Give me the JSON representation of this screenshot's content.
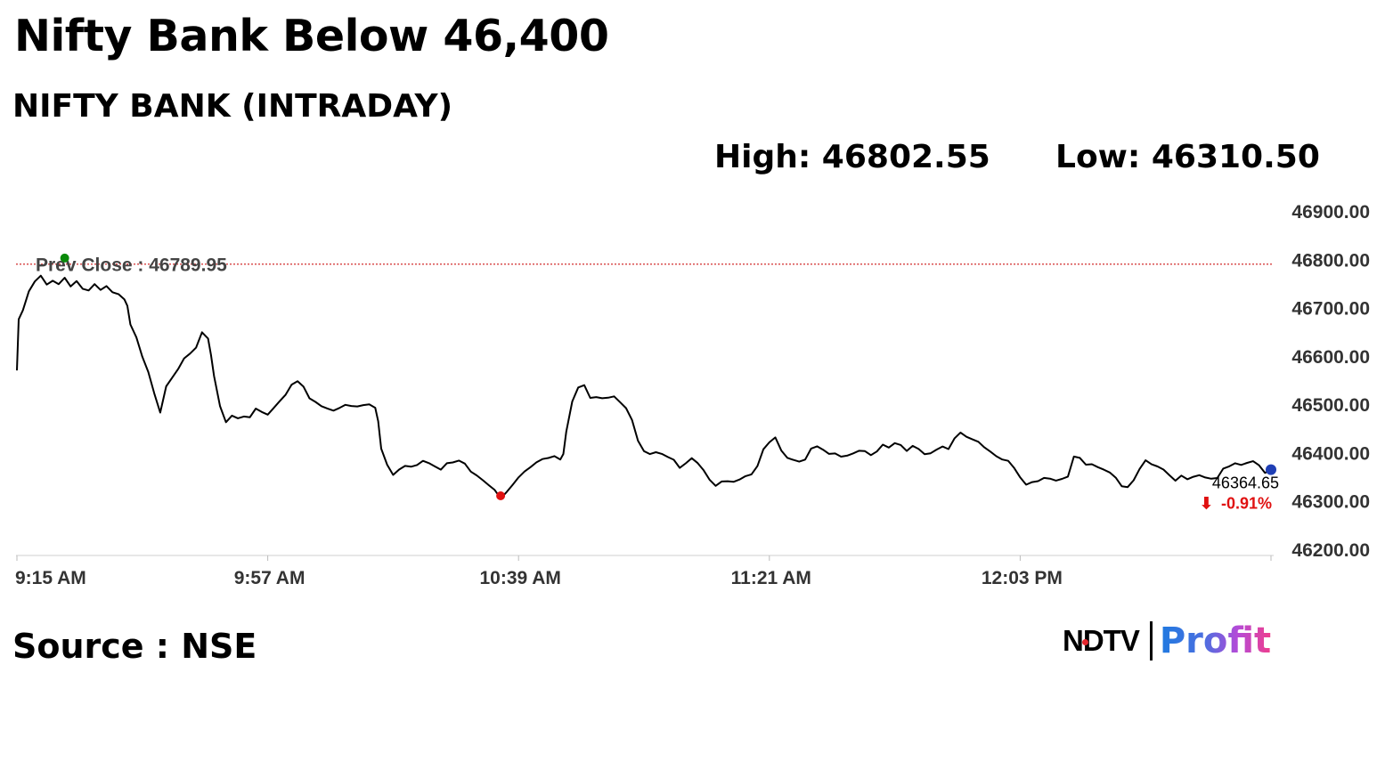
{
  "headline": "Nifty Bank Below 46,400",
  "subheading": "NIFTY BANK (INTRADAY)",
  "stats": {
    "high": "High: 46802.55",
    "low": "Low: 46310.50"
  },
  "source": "Source : NSE",
  "brand": {
    "left": "NDTV",
    "right": "Profit"
  },
  "colors": {
    "line": "#000000",
    "prev_close_line": "#d22f2f",
    "high_marker": "#0a8a0a",
    "low_marker": "#e01010",
    "last_marker": "#1f3fb5",
    "change_negative": "#e01010"
  },
  "chart_data": {
    "type": "line",
    "title": "NIFTY BANK (INTRADAY)",
    "xlabel": "",
    "ylabel": "",
    "x_ticks": [
      "9:15 AM",
      "9:57 AM",
      "10:39 AM",
      "11:21 AM",
      "12:03 PM"
    ],
    "x_range_minutes": [
      555,
      765
    ],
    "y_ticks": [
      "46200.00",
      "46300.00",
      "46400.00",
      "46500.00",
      "46600.00",
      "46700.00",
      "46800.00",
      "46900.00"
    ],
    "ylim": [
      46200,
      46900
    ],
    "grid": false,
    "prev_close": {
      "label": "Prev Close : 46789.95",
      "value": 46789.95
    },
    "last": {
      "time_minutes": 765,
      "value": 46364.65,
      "label": "46364.65",
      "change": "-0.91%",
      "arrow": "⬇"
    },
    "high_point": {
      "time_minutes": 563,
      "value": 46802.55
    },
    "low_point": {
      "time_minutes": 636,
      "value": 46310.5
    },
    "series": [
      {
        "points": [
          [
            555,
            46570
          ],
          [
            555.3,
            46670
          ],
          [
            556,
            46690
          ],
          [
            557,
            46730
          ],
          [
            558,
            46750
          ],
          [
            559,
            46760
          ],
          [
            560,
            46745
          ],
          [
            561,
            46760
          ],
          [
            562,
            46755
          ],
          [
            563,
            46770
          ],
          [
            564,
            46750
          ],
          [
            565,
            46760
          ],
          [
            566,
            46745
          ],
          [
            567,
            46735
          ],
          [
            568,
            46745
          ],
          [
            569,
            46730
          ],
          [
            570,
            46740
          ],
          [
            571,
            46725
          ],
          [
            572,
            46720
          ],
          [
            573,
            46710
          ],
          [
            573.5,
            46700
          ],
          [
            574,
            46665
          ],
          [
            575,
            46640
          ],
          [
            576,
            46600
          ],
          [
            577,
            46570
          ],
          [
            578,
            46530
          ],
          [
            579,
            46490
          ],
          [
            580,
            46545
          ],
          [
            581,
            46555
          ],
          [
            582,
            46570
          ],
          [
            583,
            46590
          ],
          [
            584,
            46600
          ],
          [
            585,
            46610
          ],
          [
            586,
            46640
          ],
          [
            587,
            46630
          ],
          [
            587.5,
            46600
          ],
          [
            588,
            46560
          ],
          [
            589,
            46500
          ],
          [
            590,
            46470
          ],
          [
            591,
            46485
          ],
          [
            592,
            46480
          ],
          [
            593,
            46485
          ],
          [
            594,
            46480
          ],
          [
            595,
            46490
          ],
          [
            596,
            46480
          ],
          [
            597,
            46475
          ],
          [
            598,
            46490
          ],
          [
            599,
            46500
          ],
          [
            600,
            46515
          ],
          [
            601,
            46535
          ],
          [
            602,
            46545
          ],
          [
            603,
            46540
          ],
          [
            604,
            46520
          ],
          [
            605,
            46510
          ],
          [
            606,
            46500
          ],
          [
            607,
            46495
          ],
          [
            608,
            46490
          ],
          [
            609,
            46500
          ],
          [
            610,
            46500
          ],
          [
            611,
            46495
          ],
          [
            612,
            46490
          ],
          [
            613,
            46495
          ],
          [
            614,
            46495
          ],
          [
            615,
            46490
          ],
          [
            615.5,
            46460
          ],
          [
            616,
            46410
          ],
          [
            617,
            46380
          ],
          [
            618,
            46360
          ],
          [
            619,
            46370
          ],
          [
            620,
            46380
          ],
          [
            621,
            46375
          ],
          [
            622,
            46380
          ],
          [
            623,
            46385
          ],
          [
            624,
            46375
          ],
          [
            625,
            46365
          ],
          [
            626,
            46360
          ],
          [
            627,
            46370
          ],
          [
            628,
            46375
          ],
          [
            629,
            46380
          ],
          [
            630,
            46370
          ],
          [
            631,
            46360
          ],
          [
            632,
            46355
          ],
          [
            633,
            46350
          ],
          [
            634,
            46340
          ],
          [
            635,
            46330
          ],
          [
            636,
            46310
          ],
          [
            637,
            46325
          ],
          [
            638,
            46335
          ],
          [
            639,
            46345
          ],
          [
            640,
            46355
          ],
          [
            641,
            46365
          ],
          [
            642,
            46375
          ],
          [
            643,
            46380
          ],
          [
            644,
            46385
          ],
          [
            645,
            46390
          ],
          [
            646,
            46390
          ],
          [
            646.5,
            46400
          ],
          [
            647,
            46450
          ],
          [
            648,
            46510
          ],
          [
            649,
            46540
          ],
          [
            650,
            46545
          ],
          [
            651,
            46520
          ],
          [
            652,
            46515
          ],
          [
            653,
            46510
          ],
          [
            654,
            46510
          ],
          [
            655,
            46510
          ],
          [
            656,
            46495
          ],
          [
            657,
            46485
          ],
          [
            658,
            46460
          ],
          [
            659,
            46420
          ],
          [
            660,
            46405
          ],
          [
            661,
            46400
          ],
          [
            662,
            46405
          ],
          [
            663,
            46400
          ],
          [
            664,
            46395
          ],
          [
            665,
            46390
          ],
          [
            666,
            46375
          ],
          [
            667,
            46380
          ],
          [
            668,
            46385
          ],
          [
            669,
            46375
          ],
          [
            670,
            46360
          ],
          [
            671,
            46340
          ],
          [
            672,
            46325
          ],
          [
            673,
            46335
          ],
          [
            674,
            46340
          ],
          [
            675,
            46345
          ],
          [
            676,
            46350
          ],
          [
            677,
            46355
          ],
          [
            678,
            46360
          ],
          [
            679,
            46375
          ],
          [
            680,
            46410
          ],
          [
            681,
            46425
          ],
          [
            682,
            46430
          ],
          [
            683,
            46400
          ],
          [
            684,
            46385
          ],
          [
            685,
            46380
          ],
          [
            686,
            46375
          ],
          [
            687,
            46380
          ],
          [
            688,
            46400
          ],
          [
            689,
            46410
          ],
          [
            690,
            46405
          ],
          [
            691,
            46400
          ],
          [
            692,
            46400
          ],
          [
            693,
            46395
          ],
          [
            694,
            46400
          ],
          [
            695,
            46405
          ],
          [
            696,
            46410
          ],
          [
            697,
            46405
          ],
          [
            698,
            46395
          ],
          [
            699,
            46400
          ],
          [
            700,
            46410
          ],
          [
            701,
            46405
          ],
          [
            702,
            46415
          ],
          [
            703,
            46410
          ],
          [
            704,
            46405
          ],
          [
            705,
            46415
          ],
          [
            706,
            46410
          ],
          [
            707,
            46400
          ],
          [
            708,
            46405
          ],
          [
            709,
            46415
          ],
          [
            710,
            46420
          ],
          [
            711,
            46410
          ],
          [
            712,
            46430
          ],
          [
            713,
            46440
          ],
          [
            714,
            46430
          ],
          [
            715,
            46420
          ],
          [
            716,
            46415
          ],
          [
            717,
            46405
          ],
          [
            718,
            46395
          ],
          [
            719,
            46390
          ],
          [
            720,
            46385
          ],
          [
            721,
            46385
          ],
          [
            722,
            46375
          ],
          [
            723,
            46355
          ],
          [
            724,
            46340
          ],
          [
            725,
            46345
          ],
          [
            726,
            46340
          ],
          [
            727,
            46345
          ],
          [
            728,
            46340
          ],
          [
            729,
            46335
          ],
          [
            730,
            46340
          ],
          [
            731,
            46345
          ],
          [
            732,
            46385
          ],
          [
            733,
            46380
          ],
          [
            734,
            46370
          ],
          [
            735,
            46375
          ],
          [
            736,
            46370
          ],
          [
            737,
            46365
          ],
          [
            738,
            46360
          ],
          [
            739,
            46350
          ],
          [
            740,
            46335
          ],
          [
            741,
            46330
          ],
          [
            742,
            46340
          ],
          [
            743,
            46360
          ],
          [
            744,
            46375
          ],
          [
            745,
            46370
          ],
          [
            746,
            46365
          ],
          [
            747,
            46360
          ],
          [
            748,
            46350
          ],
          [
            749,
            46345
          ],
          [
            750,
            46355
          ],
          [
            751,
            46350
          ],
          [
            752,
            46355
          ],
          [
            753,
            46360
          ],
          [
            754,
            46355
          ],
          [
            755,
            46350
          ],
          [
            756,
            46345
          ],
          [
            757,
            46360
          ],
          [
            758,
            46365
          ],
          [
            759,
            46370
          ],
          [
            760,
            46365
          ],
          [
            761,
            46370
          ],
          [
            762,
            46375
          ],
          [
            763,
            46370
          ],
          [
            764,
            46360
          ],
          [
            765,
            46364.65
          ]
        ]
      }
    ]
  }
}
